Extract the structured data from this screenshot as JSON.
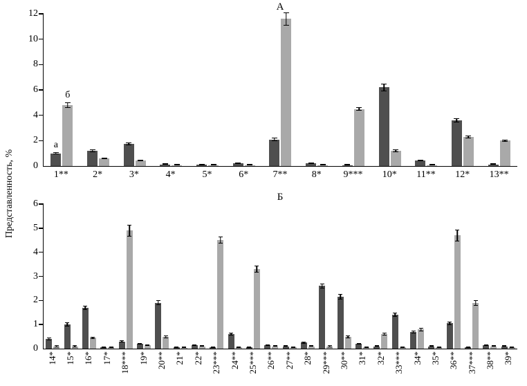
{
  "ylabel": "Представленность, %",
  "colors": {
    "series_a": "#4f4f4f",
    "series_b": "#a9a9a9",
    "axis": "#000000",
    "error_bar": "#000000"
  },
  "chart_data": [
    {
      "type": "bar",
      "title": "А",
      "ylim": [
        0,
        12
      ],
      "yticks": [
        0,
        2,
        4,
        6,
        8,
        10,
        12
      ],
      "grid": false,
      "legend_position": "none",
      "categories": [
        "1**",
        "2*",
        "3*",
        "4*",
        "5*",
        "6*",
        "7**",
        "8*",
        "9***",
        "10*",
        "11**",
        "12*",
        "13**"
      ],
      "series": [
        {
          "name": "а",
          "values": [
            1.0,
            1.2,
            1.75,
            0.12,
            0.1,
            0.2,
            2.1,
            0.2,
            0.05,
            6.2,
            0.45,
            3.6,
            0.12
          ],
          "errors": [
            0.08,
            0.1,
            0.1,
            0.03,
            0.02,
            0.04,
            0.12,
            0.04,
            0.02,
            0.3,
            0.06,
            0.15,
            0.03
          ]
        },
        {
          "name": "б",
          "values": [
            4.8,
            0.6,
            0.45,
            0.05,
            0.05,
            0.08,
            11.6,
            0.08,
            4.5,
            1.2,
            0.05,
            2.3,
            2.0
          ],
          "errors": [
            0.2,
            0.06,
            0.05,
            0.02,
            0.02,
            0.02,
            0.5,
            0.02,
            0.15,
            0.1,
            0.02,
            0.12,
            0.1
          ]
        }
      ],
      "annotations": [
        {
          "group": 0,
          "series": 0,
          "label": "а"
        },
        {
          "group": 0,
          "series": 1,
          "label": "б"
        }
      ]
    },
    {
      "type": "bar",
      "title": "Б",
      "ylim": [
        0,
        6
      ],
      "yticks": [
        0,
        1,
        2,
        3,
        4,
        5,
        6
      ],
      "grid": false,
      "legend_position": "none",
      "categories": [
        "14*",
        "15*",
        "16*",
        "17*",
        "18***",
        "19*",
        "20**",
        "21*",
        "22*",
        "23***",
        "24**",
        "25***",
        "26**",
        "27**",
        "28*",
        "29***",
        "30**",
        "31*",
        "32*",
        "33***",
        "34*",
        "35*",
        "36**",
        "37***",
        "38**",
        "39*"
      ],
      "series": [
        {
          "name": "а",
          "values": [
            0.4,
            1.0,
            1.7,
            0.05,
            0.3,
            0.2,
            1.9,
            0.05,
            0.15,
            0.05,
            0.6,
            0.05,
            0.15,
            0.1,
            0.25,
            2.6,
            2.15,
            0.2,
            0.1,
            1.4,
            0.7,
            0.1,
            1.05,
            0.05,
            0.15,
            0.1
          ],
          "errors": [
            0.05,
            0.08,
            0.08,
            0.02,
            0.04,
            0.03,
            0.1,
            0.02,
            0.03,
            0.02,
            0.05,
            0.02,
            0.03,
            0.02,
            0.04,
            0.1,
            0.12,
            0.03,
            0.02,
            0.08,
            0.06,
            0.02,
            0.08,
            0.02,
            0.03,
            0.02
          ]
        },
        {
          "name": "б",
          "values": [
            0.1,
            0.1,
            0.45,
            0.05,
            4.9,
            0.15,
            0.5,
            0.03,
            0.1,
            4.5,
            0.05,
            3.3,
            0.1,
            0.05,
            0.1,
            0.1,
            0.5,
            0.05,
            0.6,
            0.05,
            0.8,
            0.05,
            4.7,
            1.9,
            0.1,
            0.05
          ],
          "errors": [
            0.03,
            0.03,
            0.05,
            0.02,
            0.25,
            0.03,
            0.06,
            0.01,
            0.02,
            0.15,
            0.02,
            0.15,
            0.02,
            0.02,
            0.02,
            0.03,
            0.06,
            0.02,
            0.06,
            0.02,
            0.07,
            0.02,
            0.25,
            0.12,
            0.02,
            0.02
          ]
        }
      ],
      "annotations": []
    }
  ]
}
